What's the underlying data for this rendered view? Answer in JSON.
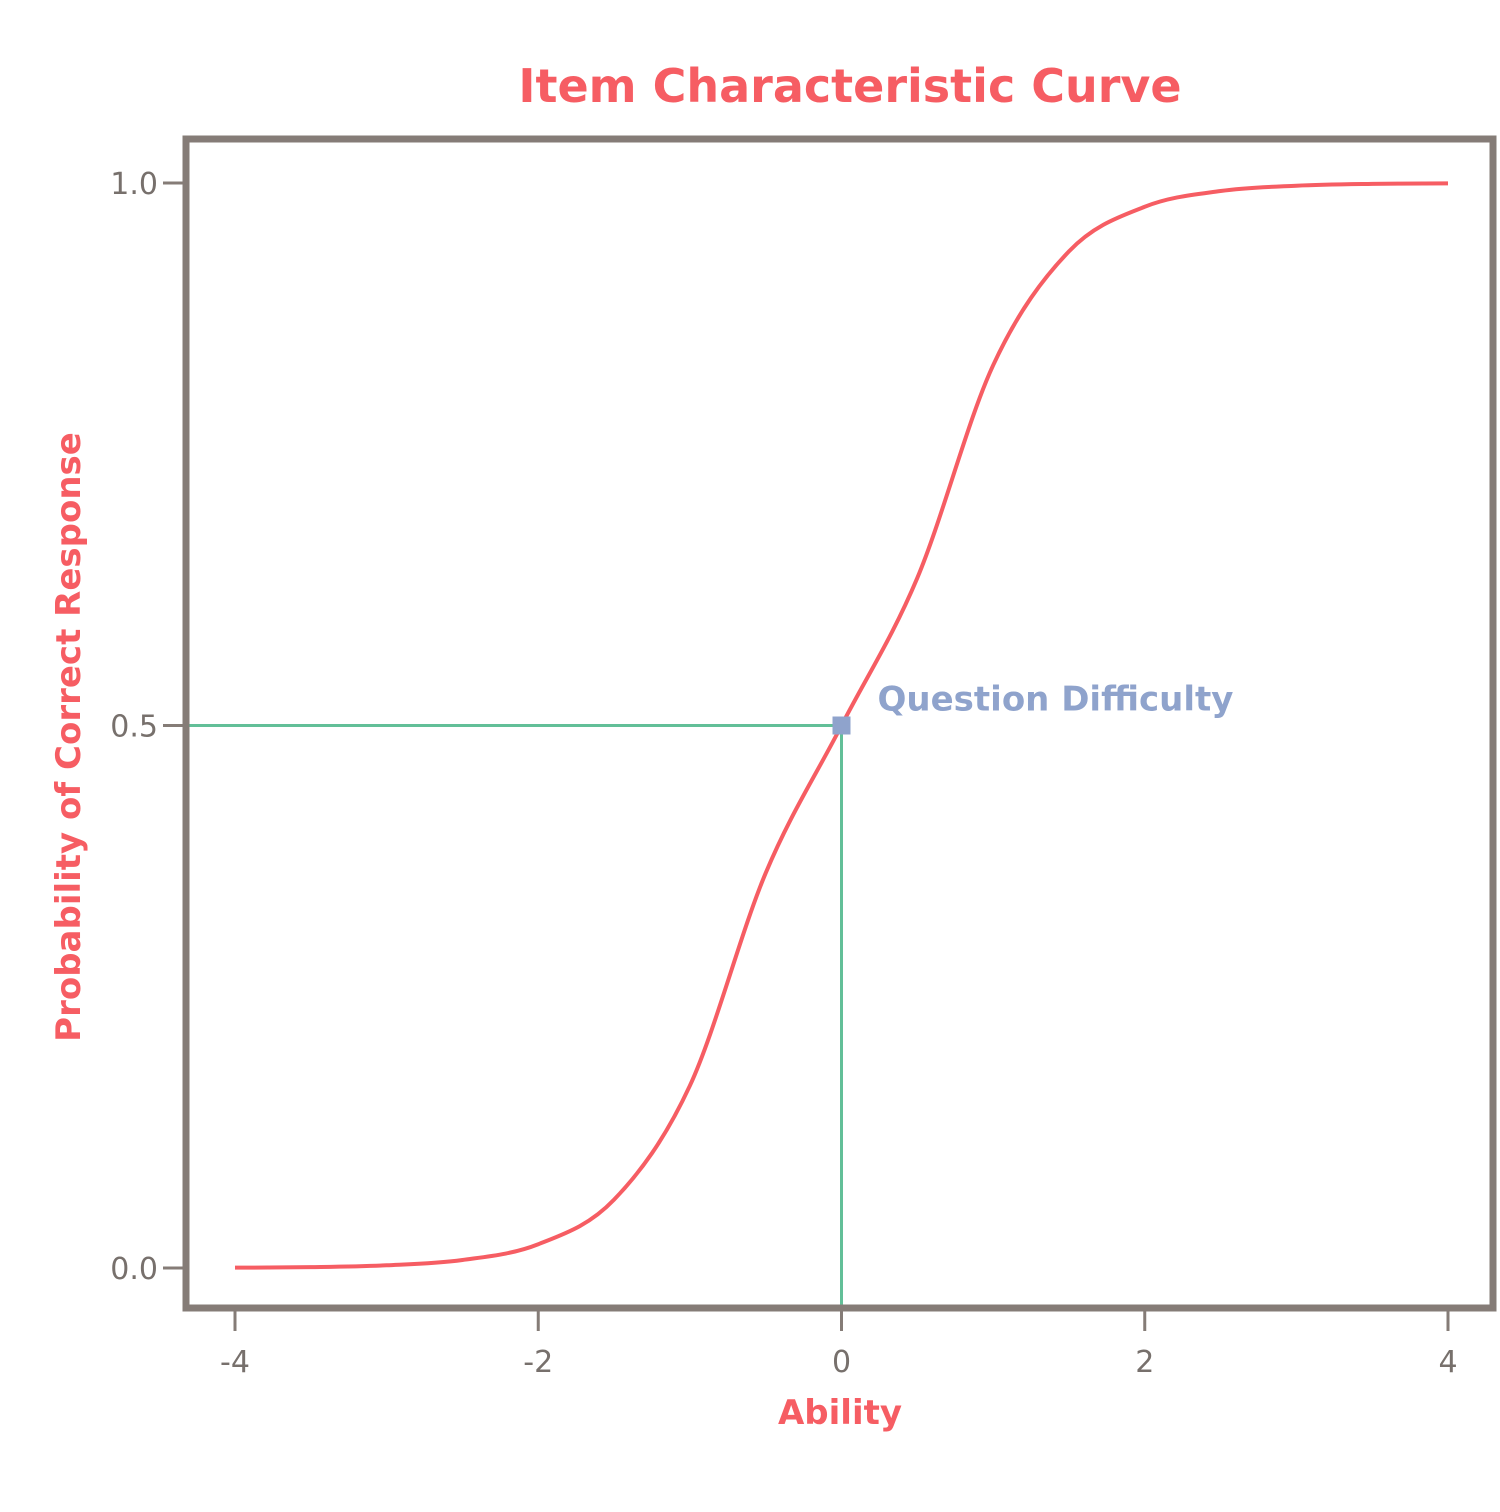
{
  "chart_data": {
    "type": "line",
    "title": "Item Characteristic Curve",
    "xlabel": "Ability",
    "ylabel": "Probability of Correct Response",
    "xlim": [
      -4,
      4
    ],
    "ylim": [
      0,
      1
    ],
    "x_ticks": [
      "-4",
      "-2",
      "0",
      "2",
      "4"
    ],
    "y_ticks": [
      "0.0",
      "0.5",
      "1.0"
    ],
    "x_tick_values": [
      -4,
      -2,
      0,
      2,
      4
    ],
    "y_tick_values": [
      0.0,
      0.5,
      1.0
    ],
    "grid": false,
    "series": [
      {
        "x": [
          -4,
          -3.5,
          -3,
          -2.5,
          -2,
          -1.5,
          -1,
          -0.5,
          0,
          0.5,
          1,
          1.5,
          2,
          2.5,
          3,
          3.5,
          4
        ],
        "y": [
          0.0003,
          0.0008,
          0.0025,
          0.0074,
          0.0219,
          0.063,
          0.168,
          0.364,
          0.5,
          0.636,
          0.832,
          0.937,
          0.9781,
          0.9926,
          0.9975,
          0.9992,
          0.9997
        ],
        "color": "#f65d63"
      }
    ],
    "annotation": {
      "text": "Question Difficulty",
      "x": 0,
      "y": 0.5,
      "marker_color": "#8fa3cc",
      "text_color": "#8fa3cc",
      "guide_color": "#62bf98"
    },
    "colors": {
      "title": "#f65d63",
      "axis_title": "#f65d63",
      "frame": "#857c77",
      "tick_text": "#77706c"
    }
  }
}
